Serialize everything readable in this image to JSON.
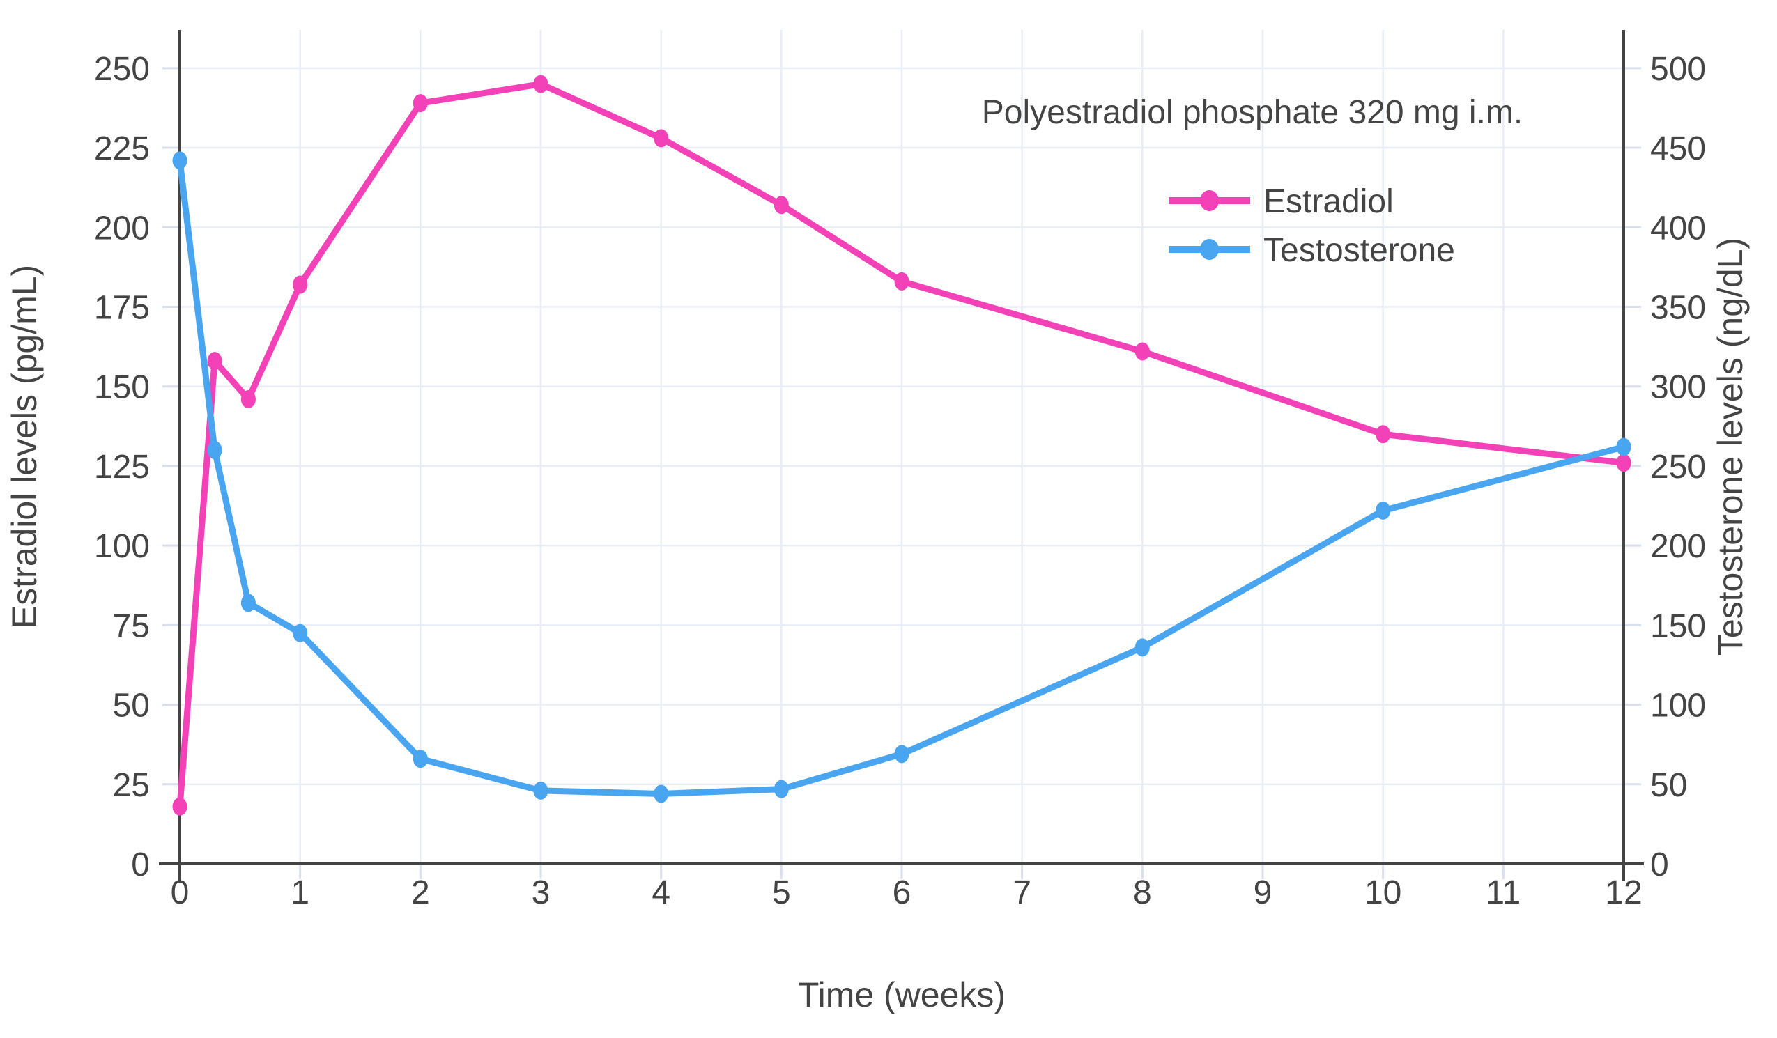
{
  "annotation": "Polyestradiol phosphate 320 mg i.m.",
  "colors": {
    "estradiol": "#F341B7",
    "testosterone": "#4AA5F0",
    "axis_line": "#444444",
    "gridline": "#E9EDF6",
    "tick_mark": "#D9DFEC",
    "text": "#444444",
    "background": "#FFFFFF"
  },
  "axes": {
    "x": {
      "title": "Time (weeks)",
      "ticks": [
        0,
        1,
        2,
        3,
        4,
        5,
        6,
        7,
        8,
        9,
        10,
        11,
        12
      ],
      "range": [
        0,
        12
      ]
    },
    "left": {
      "title": "Estradiol levels (pg/mL)",
      "ticks": [
        0,
        25,
        50,
        75,
        100,
        125,
        150,
        175,
        200,
        225,
        250
      ],
      "range": [
        0,
        262
      ]
    },
    "right": {
      "title": "Testosterone levels (ng/dL)",
      "ticks": [
        0,
        50,
        100,
        150,
        200,
        250,
        300,
        350,
        400,
        450,
        500
      ],
      "range": [
        0,
        524
      ]
    }
  },
  "legend": {
    "position": "top-right",
    "entries": [
      {
        "label": "Estradiol",
        "color": "#F341B7"
      },
      {
        "label": "Testosterone",
        "color": "#4AA5F0"
      }
    ]
  },
  "chart_data": {
    "type": "line",
    "title": "Polyestradiol phosphate 320 mg i.m.",
    "xlabel": "Time (weeks)",
    "x_range": [
      0,
      12
    ],
    "grid": true,
    "legend_position": "top-right",
    "series": [
      {
        "name": "Estradiol",
        "axis": "left",
        "unit": "pg/mL",
        "color": "#F341B7",
        "x": [
          0,
          0.29,
          0.57,
          1,
          2,
          3,
          4,
          5,
          6,
          8,
          10,
          12
        ],
        "y": [
          18,
          158,
          146,
          182,
          239,
          245,
          228,
          207,
          183,
          161,
          135,
          126
        ]
      },
      {
        "name": "Testosterone",
        "axis": "right",
        "unit": "ng/dL",
        "color": "#4AA5F0",
        "x": [
          0,
          0.29,
          0.57,
          1,
          2,
          3,
          4,
          5,
          6,
          8,
          10,
          12
        ],
        "y": [
          442,
          260,
          164,
          145,
          66,
          46,
          44,
          47,
          69,
          136,
          222,
          262
        ]
      }
    ]
  }
}
